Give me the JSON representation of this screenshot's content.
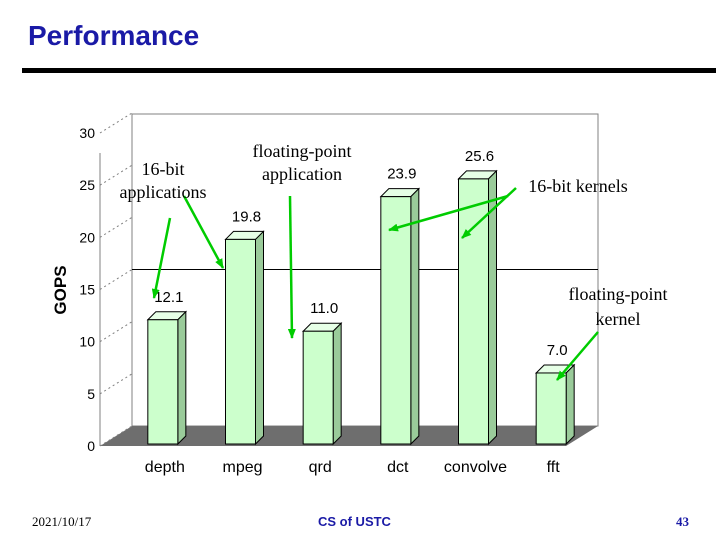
{
  "slide": {
    "title": "Performance",
    "footer_left": "2021/10/17",
    "footer_center": "CS of USTC",
    "footer_right": "43"
  },
  "chart_data": {
    "type": "bar",
    "title": "",
    "xlabel": "",
    "ylabel": "GOPS",
    "ylim": [
      0,
      30
    ],
    "yticks": [
      0,
      5,
      10,
      15,
      20,
      25,
      30
    ],
    "grid": "horizontal line at 15",
    "categories": [
      "depth",
      "mpeg",
      "qrd",
      "dct",
      "convolve",
      "fft"
    ],
    "values": [
      12.1,
      19.8,
      11.0,
      23.9,
      25.6,
      7.0
    ],
    "data_labels": [
      "12.1",
      "19.8",
      "11.0",
      "23.9",
      "25.6",
      "7.0"
    ],
    "bar_color": "#ccffcc",
    "annotations": [
      {
        "text": "16-bit applications",
        "targets": [
          "depth",
          "mpeg"
        ]
      },
      {
        "text": "floating-point application",
        "targets": [
          "qrd"
        ]
      },
      {
        "text": "16-bit kernels",
        "targets": [
          "dct",
          "convolve"
        ]
      },
      {
        "text": "floating-point kernel",
        "targets": [
          "fft"
        ]
      }
    ]
  }
}
